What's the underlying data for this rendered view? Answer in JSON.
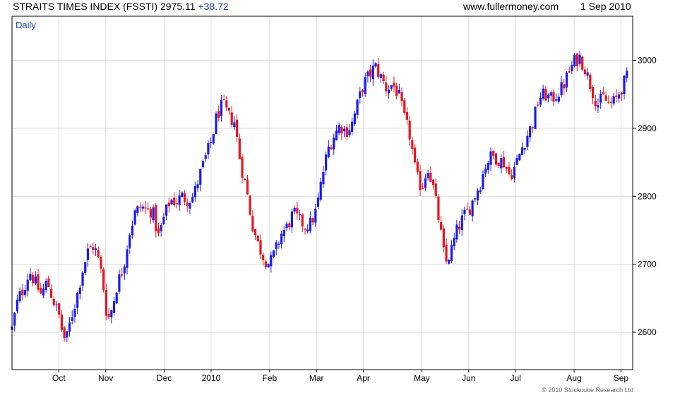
{
  "header": {
    "title": "STRAITS TIMES INDEX (FSSTI) 2975.11",
    "change": "+38.72",
    "site": "www.fullermoney.com",
    "date": "1 Sep 2010"
  },
  "credit": "© 2010 Stockcube Research Ltd",
  "colors": {
    "up": "#1a1aee",
    "down": "#e8141e",
    "grid": "#dcdcdc",
    "frame": "#000000"
  },
  "chart_data": {
    "type": "ohlc-bar",
    "period_label": "Daily",
    "y_ticks": [
      2600,
      2700,
      2800,
      2900,
      3000
    ],
    "ylim": [
      2545,
      3065
    ],
    "x_ticks": [
      "Oct",
      "Nov",
      "Dec",
      "2010",
      "Feb",
      "Mar",
      "Apr",
      "May",
      "Jun",
      "Jul",
      "Aug",
      "Sep"
    ],
    "x_tick_days": [
      0,
      4,
      9,
      13,
      18,
      22,
      26,
      31,
      35,
      39,
      44,
      48
    ],
    "x_domain": [
      -4,
      49
    ],
    "y_axis": "right",
    "grid": true,
    "close_path": [
      [
        -4,
        2605
      ],
      [
        -3.5,
        2648
      ],
      [
        -3,
        2665
      ],
      [
        -2.5,
        2690
      ],
      [
        -2,
        2672
      ],
      [
        -1.5,
        2655
      ],
      [
        -1,
        2675
      ],
      [
        -0.5,
        2648
      ],
      [
        0,
        2625
      ],
      [
        0.3,
        2600
      ],
      [
        0.6,
        2585
      ],
      [
        1,
        2618
      ],
      [
        1.5,
        2650
      ],
      [
        2,
        2690
      ],
      [
        2.5,
        2720
      ],
      [
        3,
        2728
      ],
      [
        3.5,
        2700
      ],
      [
        3.8,
        2668
      ],
      [
        4,
        2635
      ],
      [
        4.3,
        2620
      ],
      [
        4.6,
        2640
      ],
      [
        5,
        2672
      ],
      [
        5.5,
        2695
      ],
      [
        6,
        2745
      ],
      [
        6.5,
        2775
      ],
      [
        7,
        2785
      ],
      [
        7.5,
        2780
      ],
      [
        8,
        2778
      ],
      [
        8.5,
        2740
      ],
      [
        9,
        2770
      ],
      [
        9.5,
        2795
      ],
      [
        10,
        2792
      ],
      [
        10.5,
        2800
      ],
      [
        11,
        2795
      ],
      [
        11.5,
        2800
      ],
      [
        12,
        2830
      ],
      [
        12.5,
        2855
      ],
      [
        13,
        2880
      ],
      [
        13.5,
        2920
      ],
      [
        14,
        2935
      ],
      [
        14.5,
        2918
      ],
      [
        15,
        2910
      ],
      [
        15.5,
        2850
      ],
      [
        16,
        2812
      ],
      [
        16.5,
        2760
      ],
      [
        17,
        2730
      ],
      [
        17.5,
        2710
      ],
      [
        18,
        2700
      ],
      [
        18.5,
        2720
      ],
      [
        19,
        2745
      ],
      [
        19.5,
        2755
      ],
      [
        20,
        2775
      ],
      [
        20.5,
        2765
      ],
      [
        21,
        2757
      ],
      [
        21.5,
        2760
      ],
      [
        22,
        2780
      ],
      [
        22.5,
        2830
      ],
      [
        23,
        2870
      ],
      [
        23.5,
        2890
      ],
      [
        24,
        2905
      ],
      [
        24.5,
        2895
      ],
      [
        25,
        2905
      ],
      [
        25.5,
        2935
      ],
      [
        26,
        2965
      ],
      [
        26.5,
        2978
      ],
      [
        27,
        2992
      ],
      [
        27.5,
        2975
      ],
      [
        28,
        2958
      ],
      [
        28.5,
        2965
      ],
      [
        29,
        2950
      ],
      [
        29.5,
        2915
      ],
      [
        30,
        2888
      ],
      [
        30.5,
        2830
      ],
      [
        31,
        2812
      ],
      [
        31.5,
        2845
      ],
      [
        32,
        2810
      ],
      [
        32.5,
        2760
      ],
      [
        33,
        2700
      ],
      [
        33.5,
        2720
      ],
      [
        34,
        2750
      ],
      [
        34.5,
        2768
      ],
      [
        35,
        2780
      ],
      [
        35.5,
        2800
      ],
      [
        36,
        2820
      ],
      [
        36.5,
        2850
      ],
      [
        37,
        2860
      ],
      [
        37.5,
        2855
      ],
      [
        38,
        2850
      ],
      [
        38.5,
        2830
      ],
      [
        39,
        2845
      ],
      [
        39.5,
        2870
      ],
      [
        40,
        2890
      ],
      [
        40.5,
        2910
      ],
      [
        41,
        2945
      ],
      [
        41.5,
        2950
      ],
      [
        42,
        2942
      ],
      [
        42.5,
        2950
      ],
      [
        43,
        2960
      ],
      [
        43.5,
        2980
      ],
      [
        44,
        2998
      ],
      [
        44.5,
        3005
      ],
      [
        45,
        2985
      ],
      [
        45.5,
        2958
      ],
      [
        46,
        2935
      ],
      [
        46.5,
        2945
      ],
      [
        47,
        2935
      ],
      [
        47.5,
        2940
      ],
      [
        48,
        2958
      ],
      [
        48.5,
        2975
      ]
    ],
    "price_range": [
      2580,
      3040
    ]
  }
}
